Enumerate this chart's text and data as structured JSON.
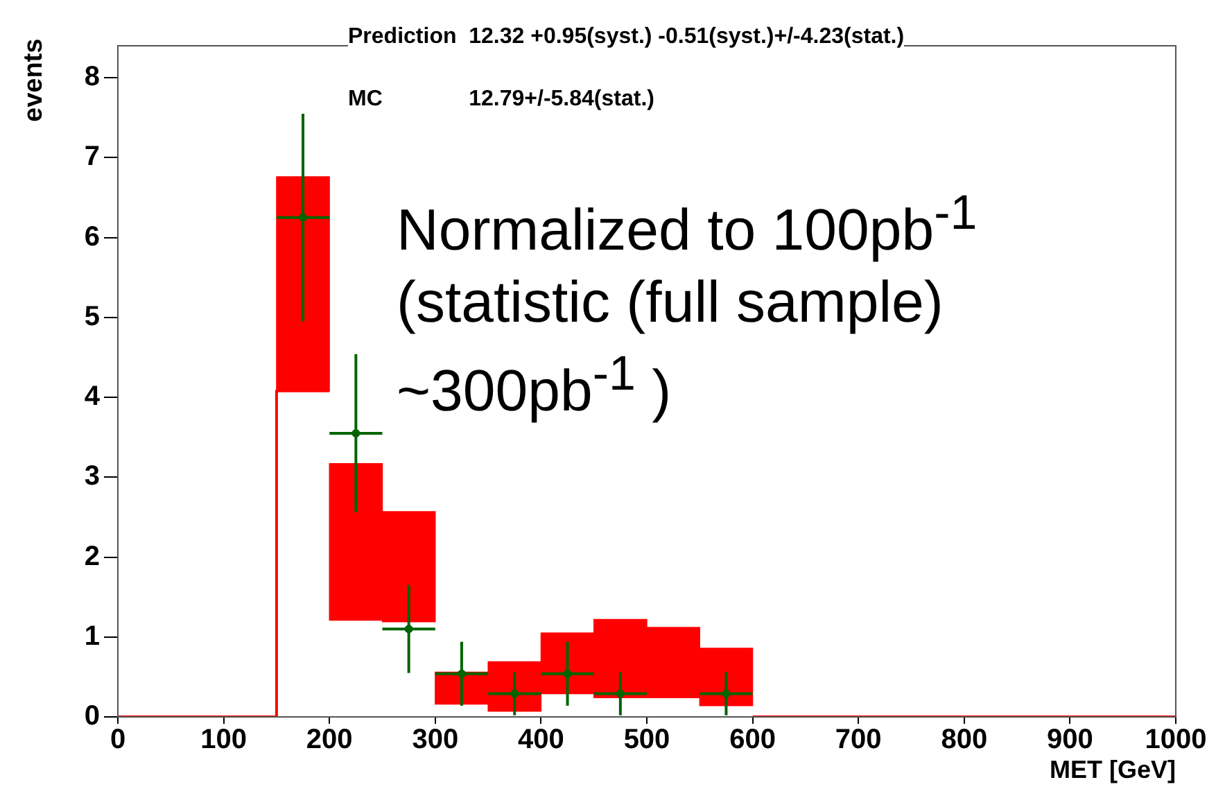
{
  "chart_data": {
    "type": "bar",
    "xlabel": "MET [GeV]",
    "ylabel": "events",
    "xlim": [
      0,
      1000
    ],
    "xticks": [
      0,
      100,
      200,
      300,
      400,
      500,
      600,
      700,
      800,
      900,
      1000
    ],
    "ylim": [
      0,
      8.4
    ],
    "yticks": [
      0,
      1,
      2,
      3,
      4,
      5,
      6,
      7,
      8
    ],
    "grid": false,
    "legend": false,
    "annotations": [
      "Prediction  12.32 +0.95(syst.) -0.51(syst.)+/-4.23(stat.)",
      "MC              12.79+/-5.84(stat.)",
      "Normalized to 100pb$^{-1}$ (statistic (full sample) ~300pb$^{-1}$ )"
    ],
    "series": [
      {
        "color": "#ff0000",
        "x": [
          175,
          225,
          275,
          325,
          375,
          425,
          475,
          525,
          575
        ],
        "base": [
          4.08,
          1.21,
          1.19,
          0.16,
          0.07,
          0.29,
          0.24,
          0.24,
          0.14
        ],
        "values": [
          2.68,
          1.96,
          1.38,
          0.4,
          0.62,
          0.76,
          0.98,
          0.88,
          0.72
        ]
      },
      {
        "type": "line",
        "color": "#ff0000",
        "marker": "none",
        "x": [
          0,
          150,
          150,
          200,
          400,
          600,
          1000
        ],
        "values": [
          0,
          0,
          4.08,
          4.08,
          null,
          0,
          0
        ]
      },
      {
        "type": "scatter",
        "color": "#006400",
        "x": [
          175,
          225,
          275,
          325,
          375,
          425,
          475,
          575
        ],
        "values": [
          6.25,
          3.55,
          1.1,
          0.54,
          0.29,
          0.54,
          0.29,
          0.29
        ],
        "errors": [
          1.3,
          0.99,
          0.55,
          0.4,
          0.27,
          0.4,
          0.27,
          0.27
        ],
        "xerrors": [
          25,
          25,
          25,
          25,
          25,
          25,
          25,
          25
        ]
      }
    ]
  }
}
